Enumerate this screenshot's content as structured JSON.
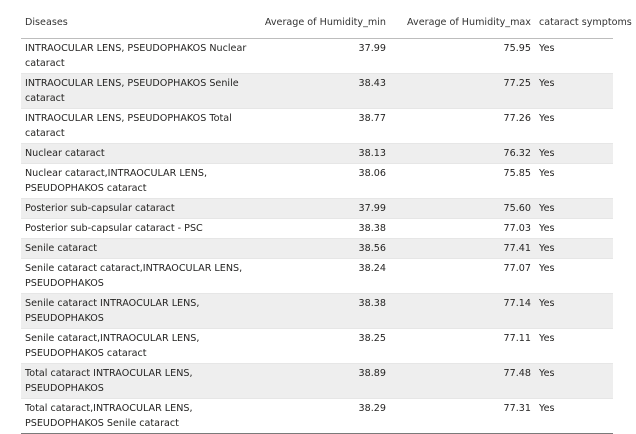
{
  "table": {
    "headers": {
      "disease": "Diseases",
      "humidity_min": "Average of Humidity_min",
      "humidity_max": "Average of Humidity_max",
      "symptoms": "cataract symptoms"
    },
    "rows": [
      {
        "disease": "INTRAOCULAR LENS, PSEUDOPHAKOS Nuclear cataract",
        "humidity_min": "37.99",
        "humidity_max": "75.95",
        "symptoms": "Yes"
      },
      {
        "disease": "INTRAOCULAR LENS, PSEUDOPHAKOS Senile cataract",
        "humidity_min": "38.43",
        "humidity_max": "77.25",
        "symptoms": "Yes"
      },
      {
        "disease": "INTRAOCULAR LENS, PSEUDOPHAKOS Total cataract",
        "humidity_min": "38.77",
        "humidity_max": "77.26",
        "symptoms": "Yes"
      },
      {
        "disease": "Nuclear cataract",
        "humidity_min": "38.13",
        "humidity_max": "76.32",
        "symptoms": "Yes"
      },
      {
        "disease": "Nuclear cataract,INTRAOCULAR LENS, PSEUDOPHAKOS cataract",
        "humidity_min": "38.06",
        "humidity_max": "75.85",
        "symptoms": "Yes"
      },
      {
        "disease": "Posterior sub-capsular cataract",
        "humidity_min": "37.99",
        "humidity_max": "75.60",
        "symptoms": "Yes"
      },
      {
        "disease": "Posterior sub-capsular cataract - PSC",
        "humidity_min": "38.38",
        "humidity_max": "77.03",
        "symptoms": "Yes"
      },
      {
        "disease": "Senile cataract",
        "humidity_min": "38.56",
        "humidity_max": "77.41",
        "symptoms": "Yes"
      },
      {
        "disease": "Senile cataract cataract,INTRAOCULAR LENS, PSEUDOPHAKOS",
        "humidity_min": "38.24",
        "humidity_max": "77.07",
        "symptoms": "Yes"
      },
      {
        "disease": "Senile cataract INTRAOCULAR LENS, PSEUDOPHAKOS",
        "humidity_min": "38.38",
        "humidity_max": "77.14",
        "symptoms": "Yes"
      },
      {
        "disease": "Senile cataract,INTRAOCULAR LENS, PSEUDOPHAKOS cataract",
        "humidity_min": "38.25",
        "humidity_max": "77.11",
        "symptoms": "Yes"
      },
      {
        "disease": "Total cataract INTRAOCULAR LENS, PSEUDOPHAKOS",
        "humidity_min": "38.89",
        "humidity_max": "77.48",
        "symptoms": "Yes"
      },
      {
        "disease": "Total cataract,INTRAOCULAR LENS, PSEUDOPHAKOS Senile cataract",
        "humidity_min": "38.29",
        "humidity_max": "77.31",
        "symptoms": "Yes"
      }
    ]
  }
}
